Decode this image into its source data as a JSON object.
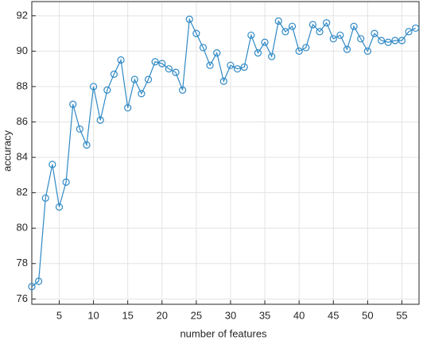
{
  "chart_data": {
    "type": "line",
    "xlabel": "number of features",
    "ylabel": "accuracy",
    "x": [
      1,
      2,
      3,
      4,
      5,
      6,
      7,
      8,
      9,
      10,
      11,
      12,
      13,
      14,
      15,
      16,
      17,
      18,
      19,
      20,
      21,
      22,
      23,
      24,
      25,
      26,
      27,
      28,
      29,
      30,
      31,
      32,
      33,
      34,
      35,
      36,
      37,
      38,
      39,
      40,
      41,
      42,
      43,
      44,
      45,
      46,
      47,
      48,
      49,
      50,
      51,
      52,
      53,
      54,
      55,
      56,
      57
    ],
    "values": [
      76.7,
      77.0,
      81.7,
      83.6,
      81.2,
      82.6,
      87.0,
      85.6,
      84.7,
      88.0,
      86.1,
      87.8,
      88.7,
      89.5,
      86.8,
      88.4,
      87.6,
      88.4,
      89.4,
      89.3,
      89.0,
      88.8,
      87.8,
      91.8,
      91.0,
      90.2,
      89.2,
      89.9,
      88.3,
      89.2,
      89.0,
      89.1,
      90.9,
      89.9,
      90.5,
      89.7,
      91.7,
      91.1,
      91.4,
      90.0,
      90.2,
      91.5,
      91.1,
      91.6,
      90.7,
      90.9,
      90.1,
      91.4,
      90.7,
      90.0,
      91.0,
      90.6,
      90.5,
      90.6,
      90.6,
      91.1,
      91.3
    ],
    "color": "#2f89c5",
    "marker": "circle",
    "xlim": [
      1,
      57.5
    ],
    "xticks": [
      5,
      10,
      15,
      20,
      25,
      30,
      35,
      40,
      45,
      50,
      55
    ],
    "ylim": [
      75.7,
      92.8
    ],
    "yticks": [
      76,
      78,
      80,
      82,
      84,
      86,
      88,
      90,
      92
    ],
    "grid": true
  }
}
